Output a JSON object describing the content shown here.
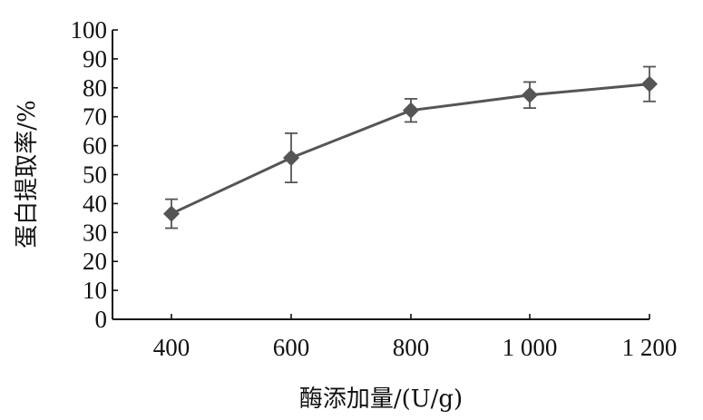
{
  "chart_data": {
    "type": "line",
    "xlabel": "酶添加量/(U/g)",
    "ylabel": "蛋白提取率/%",
    "categories": [
      "400",
      "600",
      "800",
      "1 000",
      "1 200"
    ],
    "x": [
      400,
      600,
      800,
      1000,
      1200
    ],
    "ylim": [
      0,
      100
    ],
    "yticks": [
      0,
      10,
      20,
      30,
      40,
      50,
      60,
      70,
      80,
      90,
      100
    ],
    "grid": false,
    "marker": "diamond",
    "series": [
      {
        "values": [
          36.5,
          55.8,
          72.2,
          77.5,
          81.3
        ],
        "error_low": [
          5,
          8.5,
          4,
          4.5,
          6
        ],
        "error_high": [
          5,
          8.5,
          4,
          4.5,
          6
        ]
      }
    ],
    "colors": {
      "line": "#555555",
      "marker": "#555555",
      "axis": "#111111"
    }
  }
}
